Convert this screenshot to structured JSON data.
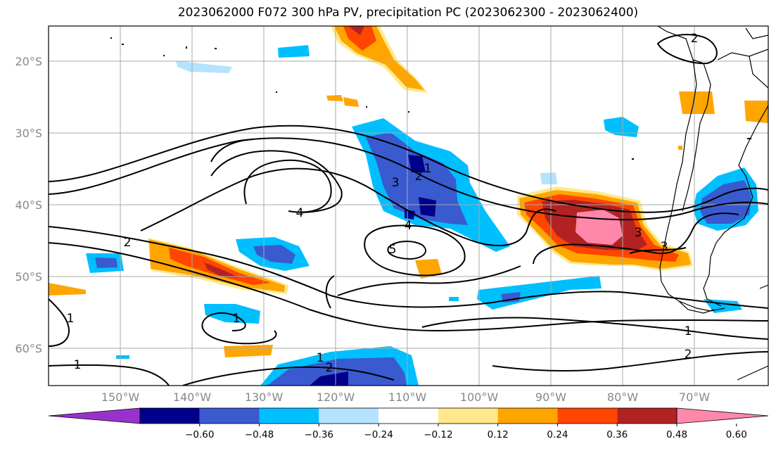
{
  "title": "2023062000 F072 300 hPa PV, precipitation PC (2023062300 - 2023062400)",
  "lat_labels": [
    "20°S",
    "30°S",
    "40°S",
    "50°S",
    "60°S"
  ],
  "lon_labels": [
    "150°W",
    "140°W",
    "130°W",
    "120°W",
    "110°W",
    "100°W",
    "90°W",
    "80°W",
    "70°W"
  ],
  "colorbar": {
    "ticks": [
      "−0.60",
      "−0.48",
      "−0.36",
      "−0.24",
      "−0.12",
      "0.12",
      "0.24",
      "0.36",
      "0.48",
      "0.60"
    ],
    "colors": [
      "#9932cc",
      "#00008b",
      "#3a5ad0",
      "#00bfff",
      "#b4e2ff",
      "#ffffff",
      "#ffe98a",
      "#ffa500",
      "#ff4500",
      "#b22222",
      "#ff88aa"
    ]
  },
  "contour_labels": [
    "1",
    "1",
    "1",
    "1",
    "1",
    "1",
    "2",
    "2",
    "2",
    "2",
    "2",
    "3",
    "3",
    "3",
    "4",
    "4",
    "5"
  ],
  "colors": {
    "grid": "#aaaaaa",
    "contour": "#000000",
    "coast": "#000000"
  }
}
